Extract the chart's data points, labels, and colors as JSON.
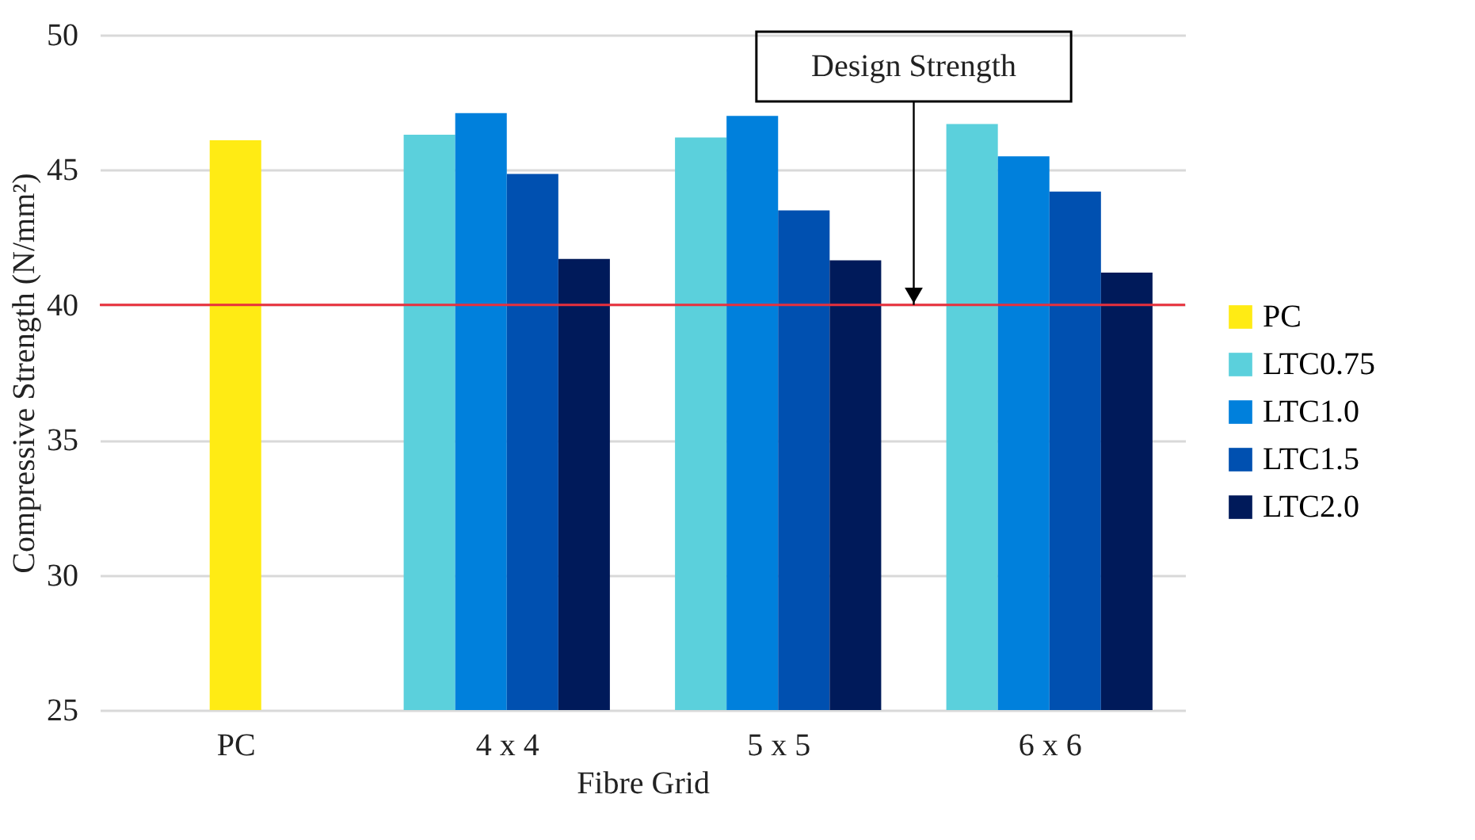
{
  "chart_data": {
    "type": "bar",
    "xlabel": "Fibre Grid",
    "ylabel": "Compressive Strength (N/mm²)",
    "categories": [
      "PC",
      "4 x 4",
      "5 x 5",
      "6 x 6"
    ],
    "series": [
      {
        "name": "PC",
        "color": "#ffeb14",
        "values": [
          46.1,
          null,
          null,
          null
        ]
      },
      {
        "name": "LTC0.75",
        "color": "#5bd0dc",
        "values": [
          null,
          46.3,
          46.2,
          46.7
        ]
      },
      {
        "name": "LTC1.0",
        "color": "#0080dc",
        "values": [
          null,
          47.1,
          47.0,
          45.5
        ]
      },
      {
        "name": "LTC1.5",
        "color": "#0050b0",
        "values": [
          null,
          44.85,
          43.5,
          44.2
        ]
      },
      {
        "name": "LTC2.0",
        "color": "#001a5a",
        "values": [
          null,
          41.7,
          41.65,
          41.2
        ]
      }
    ],
    "ylim": [
      25,
      50
    ],
    "yticks": [
      25,
      30,
      35,
      40,
      45,
      50
    ],
    "grid": "y",
    "legend": "right",
    "ref_lines": [
      {
        "axis": "y",
        "value": 40,
        "label": "Design Strength",
        "color": "#e8303c"
      }
    ]
  }
}
